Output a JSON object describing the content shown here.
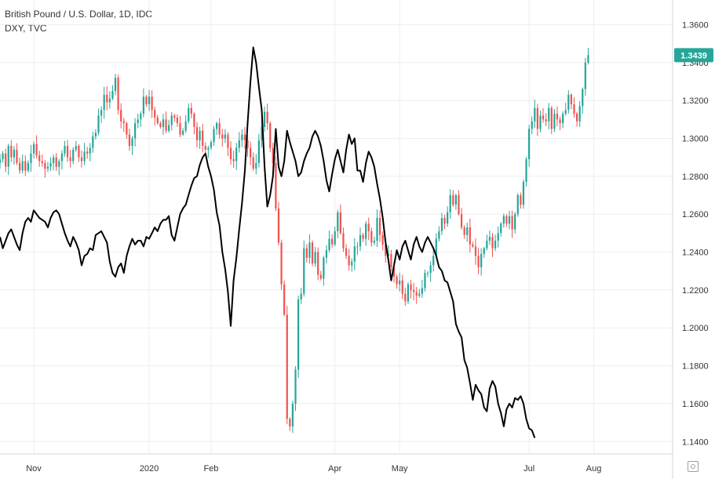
{
  "legend": {
    "main_series": "British Pound / U.S. Dollar, 1D, IDC",
    "overlay_series": "DXY, TVC"
  },
  "colors": {
    "up": "#26a69a",
    "down": "#ef5350",
    "overlay": "#000000",
    "grid": "#eceef1",
    "price_tag": "#26a69a"
  },
  "chart_data": {
    "type": "candlestick",
    "y_axis_ticks": [
      "1.3600",
      "1.3400",
      "1.3200",
      "1.3000",
      "1.2800",
      "1.2600",
      "1.2400",
      "1.2200",
      "1.2000",
      "1.1800",
      "1.1600",
      "1.1400"
    ],
    "y_tick_values": [
      1.36,
      1.34,
      1.32,
      1.3,
      1.28,
      1.26,
      1.24,
      1.22,
      1.2,
      1.18,
      1.16,
      1.14
    ],
    "ylim": [
      1.1335,
      1.373
    ],
    "x_axis_ticks": [
      "Nov",
      "2020",
      "Feb",
      "Apr",
      "May",
      "Jul",
      "Aug"
    ],
    "x_tick_positions": [
      25,
      66,
      88,
      132,
      155,
      201,
      224
    ],
    "x_range": [
      13,
      252
    ],
    "last_price": "1.3439",
    "last_price_value": 1.3439,
    "series": [
      {
        "name": "British Pound / U.S. Dollar, 1D, IDC",
        "kind": "candles",
        "start": 13,
        "closes": [
          1.289,
          1.292,
          1.285,
          1.296,
          1.29,
          1.294,
          1.287,
          1.283,
          1.288,
          1.283,
          1.287,
          1.292,
          1.297,
          1.291,
          1.288,
          1.287,
          1.284,
          1.285,
          1.287,
          1.29,
          1.285,
          1.288,
          1.292,
          1.296,
          1.29,
          1.288,
          1.294,
          1.296,
          1.29,
          1.288,
          1.293,
          1.292,
          1.295,
          1.301,
          1.303,
          1.312,
          1.315,
          1.323,
          1.319,
          1.321,
          1.325,
          1.332,
          1.315,
          1.309,
          1.308,
          1.302,
          1.296,
          1.3,
          1.308,
          1.31,
          1.313,
          1.322,
          1.318,
          1.322,
          1.315,
          1.311,
          1.308,
          1.306,
          1.31,
          1.304,
          1.307,
          1.312,
          1.311,
          1.308,
          1.302,
          1.304,
          1.309,
          1.316,
          1.313,
          1.306,
          1.299,
          1.304,
          1.296,
          1.294,
          1.295,
          1.298,
          1.305,
          1.308,
          1.302,
          1.3,
          1.302,
          1.295,
          1.289,
          1.288,
          1.295,
          1.299,
          1.302,
          1.299,
          1.295,
          1.29,
          1.284,
          1.287,
          1.299,
          1.306,
          1.314,
          1.308,
          1.295,
          1.287,
          1.263,
          1.245,
          1.223,
          1.207,
          1.152,
          1.148,
          1.16,
          1.178,
          1.215,
          1.218,
          1.242,
          1.237,
          1.245,
          1.234,
          1.24,
          1.228,
          1.226,
          1.237,
          1.241,
          1.247,
          1.244,
          1.251,
          1.261,
          1.25,
          1.242,
          1.238,
          1.233,
          1.235,
          1.243,
          1.243,
          1.249,
          1.247,
          1.255,
          1.251,
          1.245,
          1.246,
          1.258,
          1.249,
          1.244,
          1.238,
          1.239,
          1.232,
          1.227,
          1.223,
          1.225,
          1.218,
          1.214,
          1.223,
          1.22,
          1.219,
          1.217,
          1.218,
          1.221,
          1.229,
          1.229,
          1.233,
          1.238,
          1.247,
          1.251,
          1.258,
          1.255,
          1.261,
          1.27,
          1.265,
          1.27,
          1.26,
          1.253,
          1.249,
          1.253,
          1.244,
          1.243,
          1.238,
          1.232,
          1.239,
          1.242,
          1.246,
          1.248,
          1.242,
          1.246,
          1.25,
          1.255,
          1.259,
          1.255,
          1.259,
          1.252,
          1.26,
          1.27,
          1.265,
          1.277,
          1.289,
          1.305,
          1.309,
          1.316,
          1.305,
          1.312,
          1.31,
          1.309,
          1.316,
          1.305,
          1.313,
          1.31,
          1.308,
          1.313,
          1.315,
          1.323,
          1.318,
          1.313,
          1.309,
          1.317,
          1.326,
          1.34,
          1.3439
        ],
        "note": "closes in GBP/USD; candle open = previous close"
      },
      {
        "name": "DXY, TVC",
        "kind": "line",
        "scaled_points": [
          [
            13,
            1.248
          ],
          [
            14,
            1.242
          ],
          [
            15,
            1.246
          ],
          [
            16,
            1.25
          ],
          [
            17,
            1.252
          ],
          [
            18,
            1.248
          ],
          [
            19,
            1.244
          ],
          [
            20,
            1.241
          ],
          [
            21,
            1.25
          ],
          [
            22,
            1.256
          ],
          [
            23,
            1.258
          ],
          [
            24,
            1.256
          ],
          [
            25,
            1.262
          ],
          [
            26,
            1.26
          ],
          [
            27,
            1.258
          ],
          [
            28,
            1.257
          ],
          [
            29,
            1.256
          ],
          [
            30,
            1.253
          ],
          [
            31,
            1.258
          ],
          [
            32,
            1.261
          ],
          [
            33,
            1.262
          ],
          [
            34,
            1.26
          ],
          [
            35,
            1.255
          ],
          [
            36,
            1.25
          ],
          [
            37,
            1.246
          ],
          [
            38,
            1.243
          ],
          [
            39,
            1.248
          ],
          [
            40,
            1.245
          ],
          [
            41,
            1.241
          ],
          [
            42,
            1.233
          ],
          [
            43,
            1.238
          ],
          [
            44,
            1.239
          ],
          [
            45,
            1.242
          ],
          [
            46,
            1.241
          ],
          [
            47,
            1.249
          ],
          [
            48,
            1.25
          ],
          [
            49,
            1.251
          ],
          [
            50,
            1.248
          ],
          [
            51,
            1.245
          ],
          [
            52,
            1.235
          ],
          [
            53,
            1.229
          ],
          [
            54,
            1.227
          ],
          [
            55,
            1.232
          ],
          [
            56,
            1.234
          ],
          [
            57,
            1.229
          ],
          [
            58,
            1.238
          ],
          [
            59,
            1.243
          ],
          [
            60,
            1.247
          ],
          [
            61,
            1.244
          ],
          [
            62,
            1.246
          ],
          [
            63,
            1.246
          ],
          [
            64,
            1.243
          ],
          [
            65,
            1.248
          ],
          [
            66,
            1.247
          ],
          [
            67,
            1.25
          ],
          [
            68,
            1.253
          ],
          [
            69,
            1.251
          ],
          [
            70,
            1.255
          ],
          [
            71,
            1.257
          ],
          [
            72,
            1.257
          ],
          [
            73,
            1.259
          ],
          [
            74,
            1.249
          ],
          [
            75,
            1.246
          ],
          [
            76,
            1.253
          ],
          [
            77,
            1.26
          ],
          [
            78,
            1.263
          ],
          [
            79,
            1.265
          ],
          [
            80,
            1.27
          ],
          [
            81,
            1.275
          ],
          [
            82,
            1.279
          ],
          [
            83,
            1.28
          ],
          [
            84,
            1.286
          ],
          [
            85,
            1.29
          ],
          [
            86,
            1.292
          ],
          [
            87,
            1.285
          ],
          [
            88,
            1.28
          ],
          [
            89,
            1.273
          ],
          [
            90,
            1.261
          ],
          [
            91,
            1.254
          ],
          [
            92,
            1.24
          ],
          [
            93,
            1.231
          ],
          [
            94,
            1.219
          ],
          [
            95,
            1.201
          ],
          [
            96,
            1.225
          ],
          [
            97,
            1.237
          ],
          [
            98,
            1.252
          ],
          [
            99,
            1.266
          ],
          [
            100,
            1.283
          ],
          [
            101,
            1.308
          ],
          [
            102,
            1.33
          ],
          [
            103,
            1.348
          ],
          [
            104,
            1.34
          ],
          [
            105,
            1.327
          ],
          [
            106,
            1.315
          ],
          [
            107,
            1.285
          ],
          [
            108,
            1.264
          ],
          [
            109,
            1.27
          ],
          [
            110,
            1.28
          ],
          [
            111,
            1.305
          ],
          [
            112,
            1.285
          ],
          [
            113,
            1.28
          ],
          [
            114,
            1.288
          ],
          [
            115,
            1.304
          ],
          [
            116,
            1.298
          ],
          [
            117,
            1.293
          ],
          [
            118,
            1.288
          ],
          [
            119,
            1.28
          ],
          [
            120,
            1.282
          ],
          [
            121,
            1.288
          ],
          [
            122,
            1.292
          ],
          [
            123,
            1.295
          ],
          [
            124,
            1.301
          ],
          [
            125,
            1.304
          ],
          [
            126,
            1.301
          ],
          [
            127,
            1.296
          ],
          [
            128,
            1.288
          ],
          [
            129,
            1.278
          ],
          [
            130,
            1.272
          ],
          [
            131,
            1.281
          ],
          [
            132,
            1.289
          ],
          [
            133,
            1.294
          ],
          [
            134,
            1.288
          ],
          [
            135,
            1.282
          ],
          [
            136,
            1.294
          ],
          [
            137,
            1.302
          ],
          [
            138,
            1.297
          ],
          [
            139,
            1.3
          ],
          [
            140,
            1.283
          ],
          [
            141,
            1.283
          ],
          [
            142,
            1.277
          ],
          [
            143,
            1.287
          ],
          [
            144,
            1.293
          ],
          [
            145,
            1.29
          ],
          [
            146,
            1.285
          ],
          [
            147,
            1.276
          ],
          [
            148,
            1.268
          ],
          [
            149,
            1.258
          ],
          [
            150,
            1.245
          ],
          [
            151,
            1.236
          ],
          [
            152,
            1.225
          ],
          [
            153,
            1.233
          ],
          [
            154,
            1.241
          ],
          [
            155,
            1.236
          ],
          [
            156,
            1.243
          ],
          [
            157,
            1.246
          ],
          [
            158,
            1.241
          ],
          [
            159,
            1.236
          ],
          [
            160,
            1.244
          ],
          [
            161,
            1.248
          ],
          [
            162,
            1.243
          ],
          [
            163,
            1.24
          ],
          [
            164,
            1.245
          ],
          [
            165,
            1.248
          ],
          [
            166,
            1.245
          ],
          [
            167,
            1.242
          ],
          [
            168,
            1.238
          ],
          [
            169,
            1.232
          ],
          [
            170,
            1.23
          ],
          [
            171,
            1.225
          ],
          [
            172,
            1.224
          ],
          [
            173,
            1.219
          ],
          [
            174,
            1.214
          ],
          [
            175,
            1.202
          ],
          [
            176,
            1.198
          ],
          [
            177,
            1.195
          ],
          [
            178,
            1.183
          ],
          [
            179,
            1.179
          ],
          [
            180,
            1.171
          ],
          [
            181,
            1.162
          ],
          [
            182,
            1.17
          ],
          [
            183,
            1.167
          ],
          [
            184,
            1.165
          ],
          [
            185,
            1.158
          ],
          [
            186,
            1.156
          ],
          [
            187,
            1.168
          ],
          [
            188,
            1.172
          ],
          [
            189,
            1.169
          ],
          [
            190,
            1.16
          ],
          [
            191,
            1.155
          ],
          [
            192,
            1.148
          ],
          [
            193,
            1.157
          ],
          [
            194,
            1.16
          ],
          [
            195,
            1.158
          ],
          [
            196,
            1.163
          ],
          [
            197,
            1.162
          ],
          [
            198,
            1.164
          ],
          [
            199,
            1.16
          ],
          [
            200,
            1.152
          ],
          [
            201,
            1.147
          ],
          [
            202,
            1.146
          ],
          [
            203,
            1.142
          ]
        ]
      }
    ]
  }
}
